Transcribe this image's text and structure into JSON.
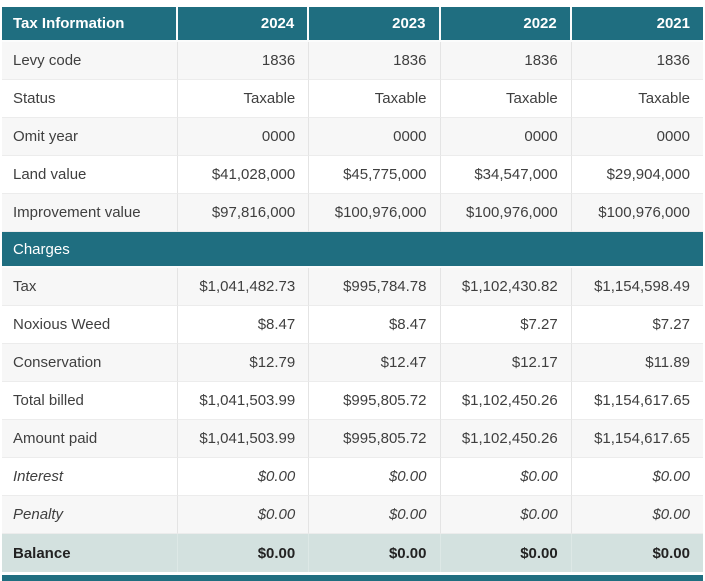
{
  "colors": {
    "header_bg": "#1f6e80",
    "balance_bg": "#d3e1df",
    "stripe_bg": "#f7f7f7",
    "header_text": "#ffffff",
    "body_text": "#3f3f3f"
  },
  "table": {
    "header": {
      "title": "Tax Information",
      "years": [
        "2024",
        "2023",
        "2022",
        "2021"
      ]
    },
    "info_rows": [
      {
        "label": "Levy code",
        "values": [
          "1836",
          "1836",
          "1836",
          "1836"
        ]
      },
      {
        "label": "Status",
        "values": [
          "Taxable",
          "Taxable",
          "Taxable",
          "Taxable"
        ]
      },
      {
        "label": "Omit year",
        "values": [
          "0000",
          "0000",
          "0000",
          "0000"
        ]
      },
      {
        "label": "Land value",
        "values": [
          "$41,028,000",
          "$45,775,000",
          "$34,547,000",
          "$29,904,000"
        ]
      },
      {
        "label": "Improvement value",
        "values": [
          "$97,816,000",
          "$100,976,000",
          "$100,976,000",
          "$100,976,000"
        ]
      }
    ],
    "charges_header": "Charges",
    "charge_rows": [
      {
        "label": "Tax",
        "values": [
          "$1,041,482.73",
          "$995,784.78",
          "$1,102,430.82",
          "$1,154,598.49"
        ]
      },
      {
        "label": "Noxious Weed",
        "values": [
          "$8.47",
          "$8.47",
          "$7.27",
          "$7.27"
        ]
      },
      {
        "label": "Conservation",
        "values": [
          "$12.79",
          "$12.47",
          "$12.17",
          "$11.89"
        ]
      },
      {
        "label": "Total billed",
        "values": [
          "$1,041,503.99",
          "$995,805.72",
          "$1,102,450.26",
          "$1,154,617.65"
        ]
      },
      {
        "label": "Amount paid",
        "values": [
          "$1,041,503.99",
          "$995,805.72",
          "$1,102,450.26",
          "$1,154,617.65"
        ]
      },
      {
        "label": "Interest",
        "values": [
          "$0.00",
          "$0.00",
          "$0.00",
          "$0.00"
        ]
      },
      {
        "label": "Penalty",
        "values": [
          "$0.00",
          "$0.00",
          "$0.00",
          "$0.00"
        ]
      }
    ],
    "balance_row": {
      "label": "Balance",
      "values": [
        "$0.00",
        "$0.00",
        "$0.00",
        "$0.00"
      ]
    }
  }
}
